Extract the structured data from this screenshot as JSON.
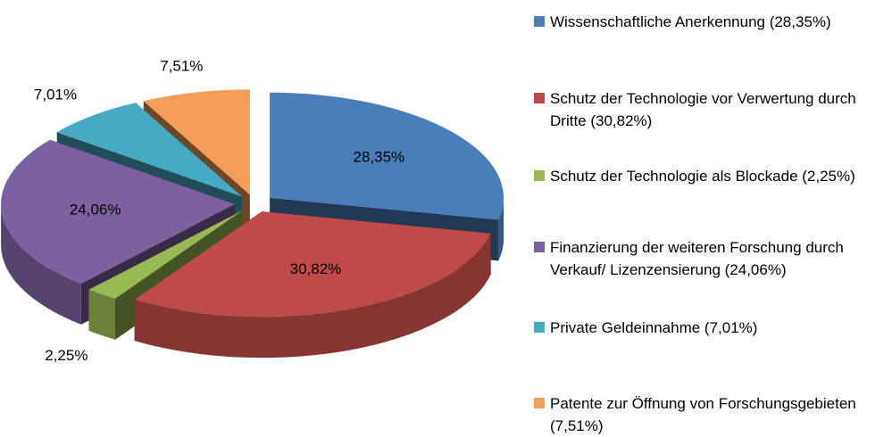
{
  "chart_data": {
    "type": "pie3d",
    "categories": [
      "Wissenschaftliche Anerkennung (28,35%)",
      "Schutz der Technologie vor Verwertung durch Dritte (30,82%)",
      "Schutz der Technologie als Blockade (2,25%)",
      "Finanzierung der weiteren Forschung durch Verkauf/ Lizenzensierung (24,06%)",
      "Private Geldeinnahme (7,01%)",
      "Patente zur Öffnung von Forschungsgebieten (7,51%)"
    ],
    "values": [
      28.35,
      30.82,
      2.25,
      24.06,
      7.01,
      7.51
    ],
    "value_labels": [
      "28,35%",
      "30,82%",
      "2,25%",
      "24,06%",
      "7,01%",
      "7,51%"
    ],
    "colors": [
      "#4a7ebb",
      "#be4b48",
      "#98b954",
      "#7d60a0",
      "#46aac5",
      "#f59d56"
    ],
    "legend": "right"
  }
}
